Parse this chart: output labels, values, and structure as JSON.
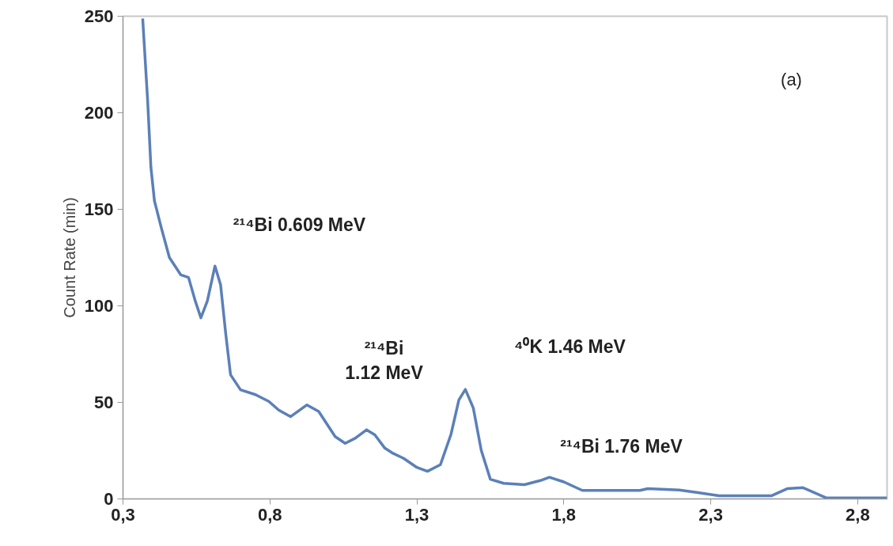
{
  "chart_data": {
    "type": "line",
    "ylabel": "Count Rate (min)",
    "color": "#5b80b8",
    "x": [
      0.367,
      0.384,
      0.395,
      0.407,
      0.43,
      0.458,
      0.497,
      0.523,
      0.546,
      0.565,
      0.587,
      0.613,
      0.632,
      0.65,
      0.666,
      0.7,
      0.751,
      0.796,
      0.83,
      0.87,
      0.926,
      0.966,
      1.022,
      1.056,
      1.09,
      1.129,
      1.157,
      1.191,
      1.219,
      1.255,
      1.3,
      1.336,
      1.38,
      1.416,
      1.443,
      1.465,
      1.492,
      1.519,
      1.55,
      1.595,
      1.666,
      1.72,
      1.751,
      1.8,
      1.863,
      2.059,
      2.086,
      2.193,
      2.256,
      2.328,
      2.506,
      2.56,
      2.614,
      2.694,
      2.9
    ],
    "values": [
      248.8,
      206,
      171.7,
      154.4,
      140.6,
      125,
      116,
      114.7,
      102.5,
      93.8,
      102.5,
      120.6,
      111,
      85,
      64.3,
      56.5,
      54,
      50.5,
      46,
      42.6,
      48.7,
      45.3,
      32.3,
      28.8,
      31.4,
      35.8,
      33.2,
      26.3,
      23.6,
      21,
      16.3,
      14.3,
      17.7,
      33.4,
      51.3,
      56.7,
      47.1,
      25.2,
      10.2,
      8.1,
      7.4,
      9.5,
      11.2,
      8.8,
      4.4,
      4.4,
      5.3,
      4.6,
      3.3,
      1.6,
      1.6,
      5.3,
      5.8,
      0.5,
      0.5
    ],
    "xlim": [
      0.3,
      2.9
    ],
    "ylim": [
      0,
      250
    ],
    "xticks": [
      {
        "value": 0.3,
        "label": "0,3"
      },
      {
        "value": 0.8,
        "label": "0,8"
      },
      {
        "value": 1.3,
        "label": "1,3"
      },
      {
        "value": 1.8,
        "label": "1,8"
      },
      {
        "value": 2.3,
        "label": "2,3"
      },
      {
        "value": 2.8,
        "label": "2,8"
      }
    ],
    "yticks": [
      0,
      50,
      100,
      150,
      200,
      250
    ],
    "grid": false,
    "marker": "none",
    "line_style": "solid",
    "annotations": [
      "²¹⁴Bi 0.609 MeV",
      "²¹⁴Bi\n1.12 MeV",
      "⁴⁰K 1.46 MeV",
      "²¹⁴Bi 1.76 MeV",
      "(a)"
    ]
  }
}
